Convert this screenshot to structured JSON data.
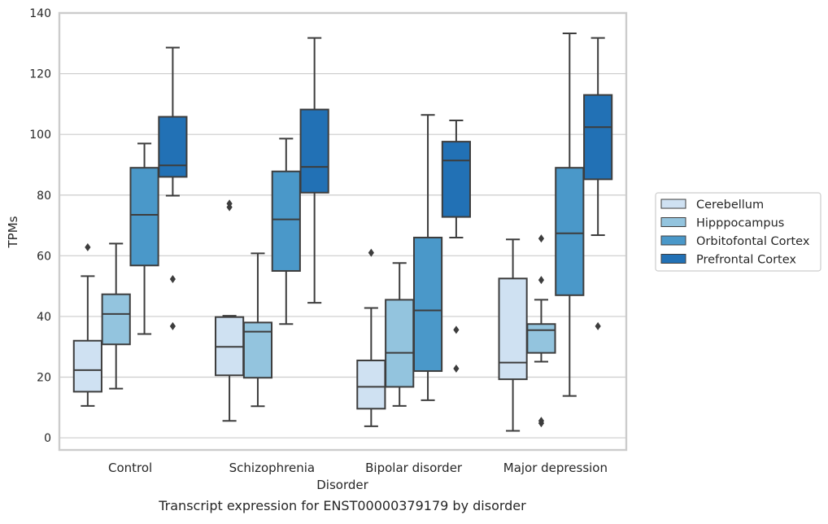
{
  "chart_data": {
    "type": "box",
    "title": "Transcript expression for ENST00000379179 by disorder",
    "xlabel": "Disorder",
    "ylabel": "TPMs",
    "ylim": [
      -4,
      140
    ],
    "yticks": [
      0,
      20,
      40,
      60,
      80,
      100,
      120,
      140
    ],
    "grid": true,
    "legend_position": "right",
    "categories": [
      "Control",
      "Schizophrenia",
      "Bipolar disorder",
      "Major depression"
    ],
    "series": [
      {
        "name": "Cerebellum",
        "color": "#cfe1f2",
        "boxes": [
          {
            "whisker_low": 10.5,
            "q1": 15.2,
            "median": 22.3,
            "q3": 32.0,
            "whisker_high": 53.3,
            "outliers": [
              62.8
            ]
          },
          {
            "whisker_low": 5.6,
            "q1": 20.6,
            "median": 30.0,
            "q3": 39.8,
            "whisker_high": 40.2,
            "outliers": [
              76.0,
              77.2
            ]
          },
          {
            "whisker_low": 3.8,
            "q1": 9.6,
            "median": 16.8,
            "q3": 25.5,
            "whisker_high": 42.8,
            "outliers": [
              61.0
            ]
          },
          {
            "whisker_low": 2.3,
            "q1": 19.3,
            "median": 24.8,
            "q3": 52.5,
            "whisker_high": 65.4,
            "outliers": []
          }
        ]
      },
      {
        "name": "Hipppocampus",
        "color": "#93c4de",
        "boxes": [
          {
            "whisker_low": 16.2,
            "q1": 30.8,
            "median": 40.8,
            "q3": 47.3,
            "whisker_high": 64.0,
            "outliers": []
          },
          {
            "whisker_low": 10.4,
            "q1": 19.8,
            "median": 35.0,
            "q3": 38.0,
            "whisker_high": 60.8,
            "outliers": []
          },
          {
            "whisker_low": 10.5,
            "q1": 16.8,
            "median": 28.0,
            "q3": 45.5,
            "whisker_high": 57.6,
            "outliers": []
          },
          {
            "whisker_low": 25.1,
            "q1": 28.0,
            "median": 35.5,
            "q3": 37.5,
            "whisker_high": 45.5,
            "outliers": [
              52.0,
              65.7,
              4.8,
              5.6
            ]
          }
        ]
      },
      {
        "name": "Orbitofontal Cortex",
        "color": "#4a98c9",
        "boxes": [
          {
            "whisker_low": 34.2,
            "q1": 56.8,
            "median": 73.5,
            "q3": 89.0,
            "whisker_high": 97.0,
            "outliers": []
          },
          {
            "whisker_low": 37.5,
            "q1": 55.0,
            "median": 72.0,
            "q3": 87.8,
            "whisker_high": 98.6,
            "outliers": []
          },
          {
            "whisker_low": 12.4,
            "q1": 22.0,
            "median": 42.0,
            "q3": 66.0,
            "whisker_high": 106.4,
            "outliers": []
          },
          {
            "whisker_low": 13.8,
            "q1": 47.0,
            "median": 67.4,
            "q3": 89.0,
            "whisker_high": 133.3,
            "outliers": []
          }
        ]
      },
      {
        "name": "Prefrontal Cortex",
        "color": "#2271b5",
        "boxes": [
          {
            "whisker_low": 79.8,
            "q1": 86.0,
            "median": 89.8,
            "q3": 105.8,
            "whisker_high": 128.6,
            "outliers": [
              52.3,
              36.8
            ]
          },
          {
            "whisker_low": 44.5,
            "q1": 80.8,
            "median": 89.3,
            "q3": 108.2,
            "whisker_high": 131.8,
            "outliers": []
          },
          {
            "whisker_low": 66.0,
            "q1": 72.8,
            "median": 91.4,
            "q3": 97.6,
            "whisker_high": 104.6,
            "outliers": [
              35.6,
              22.8
            ]
          },
          {
            "whisker_low": 66.8,
            "q1": 85.2,
            "median": 102.4,
            "q3": 113.0,
            "whisker_high": 131.8,
            "outliers": [
              36.8
            ]
          }
        ]
      }
    ]
  }
}
